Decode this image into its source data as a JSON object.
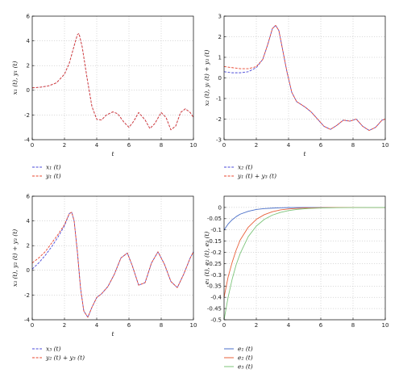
{
  "chart_data": [
    {
      "type": "line",
      "xlabel": "t",
      "ylabel": "x₁ (t), y₁ (t)",
      "xlim": [
        0,
        10
      ],
      "ylim": [
        -4,
        6
      ],
      "xticks": [
        0,
        2,
        4,
        6,
        8,
        10
      ],
      "yticks": [
        -4,
        -2,
        0,
        2,
        4,
        6
      ],
      "grid": true,
      "series": [
        {
          "name": "x₁ (t)",
          "color": "#4a4ad8",
          "dash": "dashed",
          "x": [
            0,
            0.5,
            1,
            1.5,
            2,
            2.3,
            2.6,
            2.8,
            2.9,
            3.1,
            3.4,
            3.7,
            4,
            4.3,
            4.6,
            5,
            5.3,
            5.7,
            6,
            6.3,
            6.6,
            7,
            7.3,
            7.6,
            8,
            8.3,
            8.6,
            8.9,
            9.2,
            9.5,
            9.8,
            10
          ],
          "y": [
            0.2,
            0.25,
            0.35,
            0.6,
            1.3,
            2.2,
            3.6,
            4.5,
            4.6,
            3.5,
            1.0,
            -1.3,
            -2.35,
            -2.4,
            -2.0,
            -1.75,
            -1.9,
            -2.6,
            -3.0,
            -2.5,
            -1.8,
            -2.4,
            -3.1,
            -2.7,
            -1.8,
            -2.2,
            -3.2,
            -2.9,
            -1.8,
            -1.5,
            -1.8,
            -2.2
          ]
        },
        {
          "name": "y₁ (t)",
          "color": "#e8442e",
          "dash": "dashed",
          "x": [
            0,
            0.5,
            1,
            1.5,
            2,
            2.3,
            2.6,
            2.8,
            2.9,
            3.1,
            3.4,
            3.7,
            4,
            4.3,
            4.6,
            5,
            5.3,
            5.7,
            6,
            6.3,
            6.6,
            7,
            7.3,
            7.6,
            8,
            8.3,
            8.6,
            8.9,
            9.2,
            9.5,
            9.8,
            10
          ],
          "y": [
            0.2,
            0.25,
            0.35,
            0.6,
            1.3,
            2.2,
            3.6,
            4.5,
            4.6,
            3.5,
            1.0,
            -1.3,
            -2.35,
            -2.4,
            -2.0,
            -1.75,
            -1.9,
            -2.6,
            -3.0,
            -2.5,
            -1.8,
            -2.4,
            -3.1,
            -2.7,
            -1.8,
            -2.2,
            -3.2,
            -2.9,
            -1.8,
            -1.5,
            -1.8,
            -2.2
          ]
        }
      ]
    },
    {
      "type": "line",
      "xlabel": "t",
      "ylabel": "x₂ (t), yᵢ (t) + y₃ (t)",
      "xlim": [
        0,
        10
      ],
      "ylim": [
        -3,
        3
      ],
      "xticks": [
        0,
        2,
        4,
        6,
        8,
        10
      ],
      "yticks": [
        -3,
        -2,
        -1,
        0,
        1,
        2,
        3
      ],
      "grid": true,
      "series": [
        {
          "name": "x₂ (t)",
          "color": "#4a4ad8",
          "dash": "dashed",
          "x": [
            0,
            0.5,
            1,
            1.5,
            2,
            2.4,
            2.7,
            3,
            3.2,
            3.4,
            3.6,
            3.9,
            4.2,
            4.5,
            5,
            5.4,
            5.8,
            6.2,
            6.6,
            7,
            7.4,
            7.8,
            8.2,
            8.6,
            9,
            9.4,
            9.8,
            10
          ],
          "y": [
            0.3,
            0.25,
            0.25,
            0.3,
            0.5,
            0.9,
            1.6,
            2.4,
            2.55,
            2.3,
            1.5,
            0.3,
            -0.7,
            -1.15,
            -1.4,
            -1.65,
            -2.0,
            -2.35,
            -2.5,
            -2.3,
            -2.05,
            -2.1,
            -2.0,
            -2.35,
            -2.55,
            -2.4,
            -2.05,
            -2.0
          ]
        },
        {
          "name": "y₁ (t) + y₃ (t)",
          "color": "#e8442e",
          "dash": "dashed",
          "x": [
            0,
            0.5,
            1,
            1.5,
            2,
            2.4,
            2.7,
            3,
            3.2,
            3.4,
            3.6,
            3.9,
            4.2,
            4.5,
            5,
            5.4,
            5.8,
            6.2,
            6.6,
            7,
            7.4,
            7.8,
            8.2,
            8.6,
            9,
            9.4,
            9.8,
            10
          ],
          "y": [
            0.55,
            0.5,
            0.45,
            0.45,
            0.55,
            0.9,
            1.6,
            2.4,
            2.55,
            2.3,
            1.5,
            0.3,
            -0.7,
            -1.15,
            -1.4,
            -1.65,
            -2.0,
            -2.35,
            -2.5,
            -2.3,
            -2.05,
            -2.1,
            -2.0,
            -2.35,
            -2.55,
            -2.4,
            -2.05,
            -2.0
          ]
        }
      ]
    },
    {
      "type": "line",
      "xlabel": "t",
      "ylabel": "x₃ (t), y₂ (t) + y₃ (t)",
      "xlim": [
        0,
        10
      ],
      "ylim": [
        -4,
        6
      ],
      "xticks": [
        0,
        2,
        4,
        6,
        8,
        10
      ],
      "yticks": [
        -4,
        -2,
        0,
        2,
        4,
        6
      ],
      "grid": true,
      "series": [
        {
          "name": "x₃ (t)",
          "color": "#4a4ad8",
          "dash": "dashed",
          "x": [
            0,
            0.4,
            0.8,
            1.2,
            1.6,
            2,
            2.3,
            2.45,
            2.6,
            2.8,
            3,
            3.2,
            3.45,
            3.7,
            4,
            4.3,
            4.7,
            5.1,
            5.5,
            5.9,
            6.2,
            6.6,
            7,
            7.4,
            7.8,
            8.2,
            8.6,
            9,
            9.4,
            9.8,
            10
          ],
          "y": [
            0.1,
            0.6,
            1.2,
            1.9,
            2.7,
            3.6,
            4.6,
            4.7,
            4.0,
            1.5,
            -1.5,
            -3.3,
            -3.8,
            -3.0,
            -2.2,
            -1.9,
            -1.3,
            -0.3,
            1.0,
            1.4,
            0.4,
            -1.2,
            -1.0,
            0.6,
            1.5,
            0.5,
            -0.9,
            -1.4,
            -0.3,
            1.0,
            1.5
          ]
        },
        {
          "name": "y₂ (t) + y₃ (t)",
          "color": "#e8442e",
          "dash": "dashed",
          "x": [
            0,
            0.4,
            0.8,
            1.2,
            1.6,
            2,
            2.3,
            2.45,
            2.6,
            2.8,
            3,
            3.2,
            3.45,
            3.7,
            4,
            4.3,
            4.7,
            5.1,
            5.5,
            5.9,
            6.2,
            6.6,
            7,
            7.4,
            7.8,
            8.2,
            8.6,
            9,
            9.4,
            9.8,
            10
          ],
          "y": [
            0.6,
            1.0,
            1.5,
            2.2,
            2.9,
            3.7,
            4.6,
            4.7,
            4.0,
            1.5,
            -1.5,
            -3.3,
            -3.8,
            -3.0,
            -2.2,
            -1.9,
            -1.3,
            -0.3,
            1.0,
            1.4,
            0.4,
            -1.2,
            -1.0,
            0.6,
            1.5,
            0.5,
            -0.9,
            -1.4,
            -0.3,
            1.0,
            1.5
          ]
        }
      ]
    },
    {
      "type": "line",
      "xlabel": "",
      "ylabel": "e₁ (t), e₂ (t), e₃ (t)",
      "xlim": [
        0,
        10
      ],
      "ylim": [
        -0.5,
        0.05
      ],
      "xticks": [
        0,
        2,
        4,
        6,
        8,
        10
      ],
      "yticks": [
        0,
        -0.05,
        -0.1,
        -0.15,
        -0.2,
        -0.25,
        -0.3,
        -0.35,
        -0.4,
        -0.45,
        -0.5
      ],
      "grid": true,
      "series": [
        {
          "name": "e₁ (t)",
          "color": "#4a6fc8",
          "dash": "solid",
          "x": [
            0,
            0.25,
            0.5,
            0.75,
            1,
            1.5,
            2,
            2.5,
            3,
            3.5,
            4,
            5,
            6,
            7,
            8,
            9,
            10
          ],
          "y": [
            -0.1,
            -0.074,
            -0.055,
            -0.041,
            -0.03,
            -0.017,
            -0.009,
            -0.005,
            -0.003,
            -0.0015,
            -0.0008,
            -0.0002,
            0,
            0,
            0,
            0,
            0
          ]
        },
        {
          "name": "e₂ (t)",
          "color": "#e8603a",
          "dash": "solid",
          "x": [
            0,
            0.25,
            0.5,
            0.75,
            1,
            1.5,
            2,
            2.5,
            3,
            3.5,
            4,
            4.5,
            5,
            6,
            7,
            8,
            9,
            10
          ],
          "y": [
            -0.4,
            -0.31,
            -0.245,
            -0.19,
            -0.145,
            -0.088,
            -0.053,
            -0.032,
            -0.019,
            -0.011,
            -0.0067,
            -0.004,
            -0.0024,
            -0.0009,
            -0.0003,
            0,
            0,
            0
          ]
        },
        {
          "name": "e₃ (t)",
          "color": "#7cc47a",
          "dash": "solid",
          "x": [
            0,
            0.25,
            0.5,
            0.75,
            1,
            1.5,
            2,
            2.5,
            3,
            3.5,
            4,
            4.5,
            5,
            6,
            7,
            8,
            9,
            10
          ],
          "y": [
            -0.5,
            -0.4,
            -0.32,
            -0.255,
            -0.205,
            -0.13,
            -0.083,
            -0.053,
            -0.034,
            -0.022,
            -0.014,
            -0.009,
            -0.0057,
            -0.0023,
            -0.0009,
            -0.0004,
            0,
            0
          ]
        }
      ]
    }
  ]
}
